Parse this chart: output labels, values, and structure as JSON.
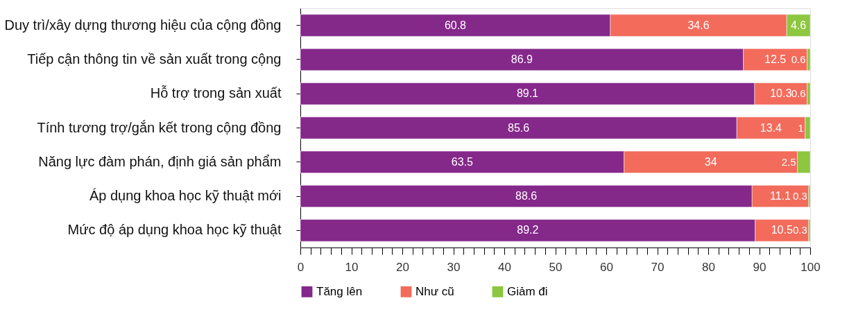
{
  "chart_data": {
    "type": "bar",
    "orientation": "horizontal",
    "stacked": true,
    "data_labels": true,
    "legend": "bottom",
    "grid": false,
    "categories": [
      "Duy trì/xây dựng thương hiệu của cộng đồng",
      "Tiếp cận thông tin về sản xuất trong cộng",
      "Hỗ trợ trong sản xuất",
      "Tính tương trợ/gắn kết trong cộng đồng",
      "Năng lực đàm phán, định giá sản phẩm",
      "Áp dụng khoa học kỹ thuật mới",
      "Mức độ áp dụng khoa học kỹ thuật"
    ],
    "series": [
      {
        "name": "Tăng lên",
        "color": "#84288a",
        "values": [
          60.8,
          86.9,
          89.1,
          85.6,
          63.5,
          88.6,
          89.2
        ]
      },
      {
        "name": "Như cũ",
        "color": "#f26b5b",
        "values": [
          34.6,
          12.5,
          10.3,
          13.4,
          34,
          11.1,
          10.5
        ]
      },
      {
        "name": "Giảm đi",
        "color": "#8dc63f",
        "values": [
          4.6,
          0.6,
          0.6,
          1,
          2.5,
          0.3,
          0.3
        ]
      }
    ],
    "xlim": [
      0,
      100
    ],
    "xticks": [
      0,
      {
        "value": 2,
        "label": null
      },
      {
        "value": 4,
        "label": null
      },
      {
        "value": 6,
        "label": null
      },
      {
        "value": 8,
        "label": null
      },
      10,
      {
        "value": 12,
        "label": null
      },
      {
        "value": 14,
        "label": null
      },
      {
        "value": 16,
        "label": null
      },
      {
        "value": 18,
        "label": null
      },
      20,
      {
        "value": 22,
        "label": null
      },
      {
        "value": 24,
        "label": null
      },
      {
        "value": 26,
        "label": null
      },
      {
        "value": 28,
        "label": null
      },
      30,
      {
        "value": 32,
        "label": null
      },
      {
        "value": 34,
        "label": null
      },
      {
        "value": 36,
        "label": null
      },
      {
        "value": 38,
        "label": null
      },
      40,
      {
        "value": 42,
        "label": null
      },
      {
        "value": 44,
        "label": null
      },
      {
        "value": 46,
        "label": null
      },
      {
        "value": 48,
        "label": null
      },
      50,
      {
        "value": 52,
        "label": null
      },
      {
        "value": 54,
        "label": null
      },
      {
        "value": 56,
        "label": null
      },
      {
        "value": 58,
        "label": null
      },
      60,
      {
        "value": 62,
        "label": null
      },
      {
        "value": 64,
        "label": null
      },
      {
        "value": 66,
        "label": null
      },
      {
        "value": 68,
        "label": null
      },
      70,
      {
        "value": 72,
        "label": null
      },
      {
        "value": 74,
        "label": null
      },
      {
        "value": 76,
        "label": null
      },
      {
        "value": 78,
        "label": null
      },
      80,
      {
        "value": 82,
        "label": null
      },
      {
        "value": 84,
        "label": null
      },
      {
        "value": 86,
        "label": null
      },
      {
        "value": 88,
        "label": null
      },
      90,
      {
        "value": 92,
        "label": null
      },
      {
        "value": 94,
        "label": null
      },
      {
        "value": 96,
        "label": null
      },
      {
        "value": 98,
        "label": null
      },
      100
    ]
  }
}
